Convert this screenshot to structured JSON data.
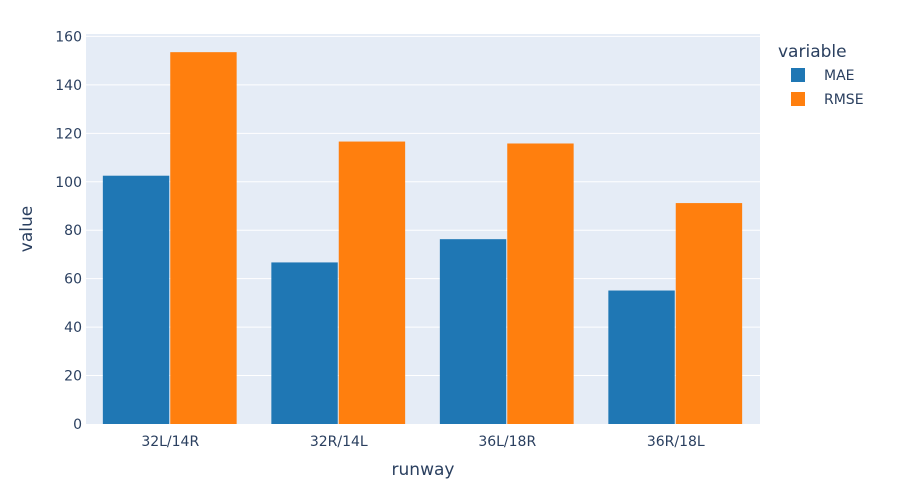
{
  "chart_data": {
    "type": "bar",
    "xlabel": "runway",
    "ylabel": "value",
    "categories": [
      "32L/14R",
      "32R/14L",
      "36L/18R",
      "36R/18L"
    ],
    "series": [
      {
        "name": "MAE",
        "color": "#1f77b4",
        "values": [
          102.5,
          66.7,
          76.3,
          55.1
        ]
      },
      {
        "name": "RMSE",
        "color": "#ff7f0e",
        "values": [
          153.5,
          116.6,
          115.8,
          91.2
        ]
      }
    ],
    "ylim": [
      0,
      161
    ],
    "yticks": [
      0,
      20,
      40,
      60,
      80,
      100,
      120,
      140,
      160
    ],
    "legend": {
      "title": "variable",
      "placement": "top-right"
    },
    "plot_background": "#e5ecf6",
    "grid": true
  }
}
